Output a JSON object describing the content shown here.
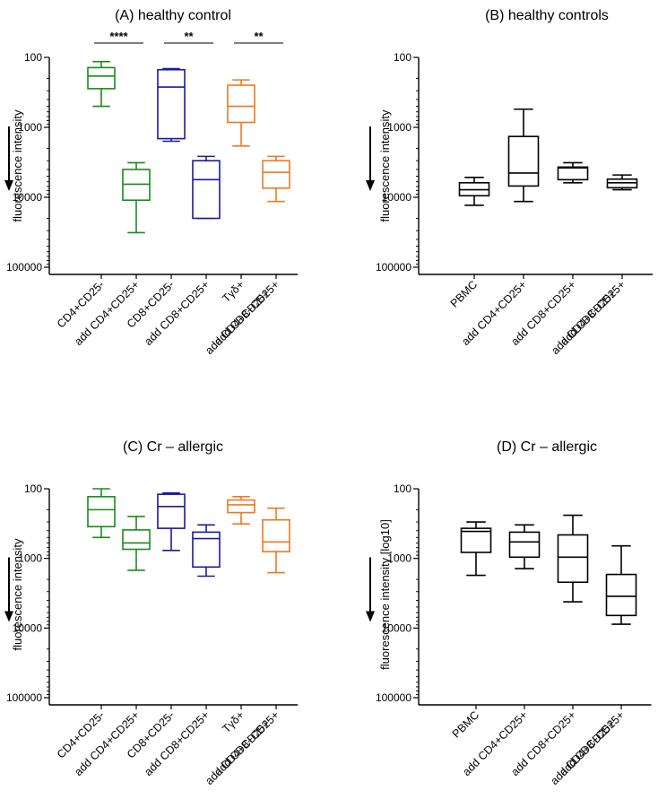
{
  "chart_data": [
    {
      "type": "boxplot",
      "title": "(A) healthy control",
      "ylabel": "fluorescence intensity",
      "yscale": "log-reversed",
      "ylim": [
        100,
        100000
      ],
      "yticks": [
        "100",
        "1000",
        "10000",
        "100000"
      ],
      "categories": [
        [
          "CD4+CD25-"
        ],
        [
          "add CD4+CD25+"
        ],
        [
          "CD8+CD25-"
        ],
        [
          "add CD8+CD25+"
        ],
        [
          "Tγδ+"
        ],
        [
          "add CD4+CD25+",
          "add  CD8+CD25+"
        ]
      ],
      "colors": [
        "#1a8a1a",
        "#1a8a1a",
        "#1a1a9e",
        "#1a1a9e",
        "#f07820",
        "#f07820"
      ],
      "boxes": [
        {
          "min": 115,
          "q1": 140,
          "median": 185,
          "q3": 280,
          "max": 500
        },
        {
          "min": 3200,
          "q1": 4000,
          "median": 6500,
          "q3": 11000,
          "max": 32000
        },
        {
          "min": 145,
          "q1": 150,
          "median": 265,
          "q3": 1450,
          "max": 1580
        },
        {
          "min": 2600,
          "q1": 3000,
          "median": 5600,
          "q3": 20000,
          "max": 20000
        },
        {
          "min": 210,
          "q1": 250,
          "median": 500,
          "q3": 850,
          "max": 1850
        },
        {
          "min": 2600,
          "q1": 3000,
          "median": 4400,
          "q3": 7400,
          "max": 11500
        }
      ],
      "significance": [
        {
          "pair": [
            0,
            1
          ],
          "label": "****"
        },
        {
          "pair": [
            2,
            3
          ],
          "label": "**"
        },
        {
          "pair": [
            4,
            5
          ],
          "label": "**"
        }
      ]
    },
    {
      "type": "boxplot",
      "title": "(B) healthy controls",
      "ylabel": "fluorescence intensity",
      "yscale": "log-reversed",
      "ylim": [
        100,
        100000
      ],
      "yticks": [
        "100",
        "1000",
        "10000",
        "100000"
      ],
      "categories": [
        [
          "PBMC"
        ],
        [
          "add CD4+CD25+"
        ],
        [
          "add CD8+CD25+"
        ],
        [
          "add CD4+CD25+",
          "add  CD8+CD25+"
        ]
      ],
      "colors": [
        "#000000",
        "#000000",
        "#000000",
        "#000000"
      ],
      "boxes": [
        {
          "min": 5200,
          "q1": 6200,
          "median": 7800,
          "q3": 9500,
          "max": 13000
        },
        {
          "min": 550,
          "q1": 1350,
          "median": 4500,
          "q3": 6900,
          "max": 11500
        },
        {
          "min": 3200,
          "q1": 3700,
          "median": 3800,
          "q3": 5600,
          "max": 6200
        },
        {
          "min": 4800,
          "q1": 5500,
          "median": 6200,
          "q3": 7300,
          "max": 7800
        }
      ],
      "significance": []
    },
    {
      "type": "boxplot",
      "title": "(C) Cr – allergic",
      "ylabel": "fluorescence intensity",
      "yscale": "log-reversed",
      "ylim": [
        100,
        100000
      ],
      "yticks": [
        "100",
        "1000",
        "10000",
        "100000"
      ],
      "categories": [
        [
          "CD4+CD25-"
        ],
        [
          "add CD4+CD25+"
        ],
        [
          "CD8+CD25-"
        ],
        [
          "add CD8+CD25+"
        ],
        [
          "Tγδ+"
        ],
        [
          "add CD4+CD25+",
          "add  CD8+CD25+"
        ]
      ],
      "colors": [
        "#1a8a1a",
        "#1a8a1a",
        "#1a1a9e",
        "#1a1a9e",
        "#f07820",
        "#f07820"
      ],
      "boxes": [
        {
          "min": 100,
          "q1": 130,
          "median": 200,
          "q3": 350,
          "max": 500
        },
        {
          "min": 250,
          "q1": 390,
          "median": 600,
          "q3": 740,
          "max": 1480
        },
        {
          "min": 115,
          "q1": 120,
          "median": 180,
          "q3": 370,
          "max": 770
        },
        {
          "min": 330,
          "q1": 420,
          "median": 520,
          "q3": 1330,
          "max": 1800
        },
        {
          "min": 130,
          "q1": 145,
          "median": 170,
          "q3": 220,
          "max": 320
        },
        {
          "min": 190,
          "q1": 280,
          "median": 580,
          "q3": 800,
          "max": 1600
        }
      ],
      "significance": []
    },
    {
      "type": "boxplot",
      "title": "(D) Cr – allergic",
      "ylabel": "fluorescence intensity [log10]",
      "yscale": "log-reversed",
      "ylim": [
        100,
        100000
      ],
      "yticks": [
        "100",
        "1000",
        "10000",
        "100000"
      ],
      "categories": [
        [
          "PBMC"
        ],
        [
          "add CD4+CD25+"
        ],
        [
          "add CD8+CD25+"
        ],
        [
          "add CD4+CD25+",
          "add  CD8+CD25+"
        ]
      ],
      "colors": [
        "#000000",
        "#000000",
        "#000000",
        "#000000"
      ],
      "boxes": [
        {
          "min": 300,
          "q1": 370,
          "median": 410,
          "q3": 820,
          "max": 1750
        },
        {
          "min": 330,
          "q1": 420,
          "median": 580,
          "q3": 960,
          "max": 1400
        },
        {
          "min": 240,
          "q1": 460,
          "median": 960,
          "q3": 2200,
          "max": 4200
        },
        {
          "min": 660,
          "q1": 1700,
          "median": 3500,
          "q3": 6600,
          "max": 8800
        }
      ],
      "significance": []
    }
  ]
}
